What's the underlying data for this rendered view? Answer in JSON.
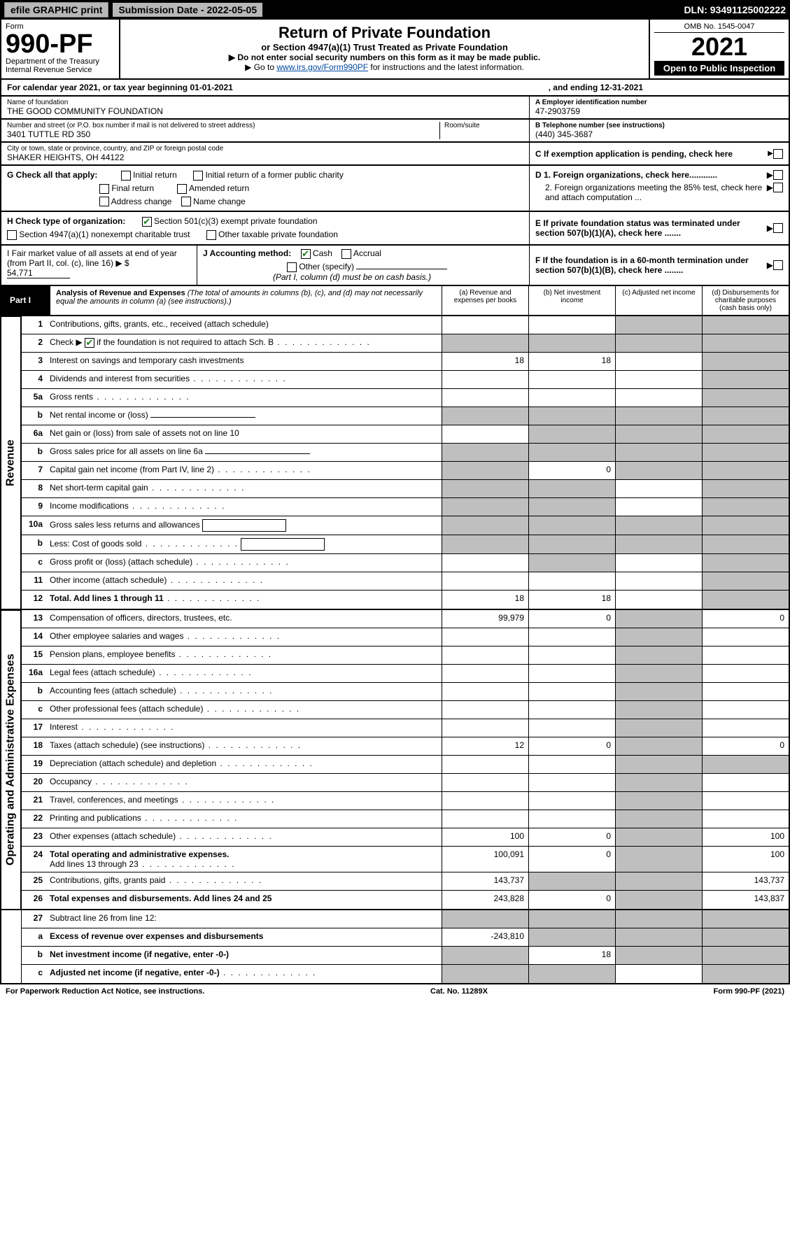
{
  "topbar": {
    "efile": "efile GRAPHIC print",
    "sub_label": "Submission Date - 2022-05-05",
    "dln": "DLN: 93491125002222"
  },
  "header": {
    "form_label": "Form",
    "form_no": "990-PF",
    "dept": "Department of the Treasury",
    "irs": "Internal Revenue Service",
    "title": "Return of Private Foundation",
    "subtitle": "or Section 4947(a)(1) Trust Treated as Private Foundation",
    "note1": "▶ Do not enter social security numbers on this form as it may be made public.",
    "note2_prefix": "▶ Go to ",
    "note2_link": "www.irs.gov/Form990PF",
    "note2_suffix": " for instructions and the latest information.",
    "omb": "OMB No. 1545-0047",
    "year": "2021",
    "open": "Open to Public Inspection"
  },
  "calyear": {
    "text_l": "For calendar year 2021, or tax year beginning 01-01-2021",
    "text_r": ", and ending 12-31-2021"
  },
  "name": {
    "lbl": "Name of foundation",
    "val": "THE GOOD COMMUNITY FOUNDATION",
    "ein_lbl": "A Employer identification number",
    "ein": "47-2903759",
    "addr_lbl": "Number and street (or P.O. box number if mail is not delivered to street address)",
    "addr": "3401 TUTTLE RD 350",
    "room_lbl": "Room/suite",
    "tel_lbl": "B Telephone number (see instructions)",
    "tel": "(440) 345-3687",
    "city_lbl": "City or town, state or province, country, and ZIP or foreign postal code",
    "city": "SHAKER HEIGHTS, OH  44122",
    "c_lbl": "C If exemption application is pending, check here"
  },
  "g": {
    "lbl": "G Check all that apply:",
    "o1": "Initial return",
    "o2": "Initial return of a former public charity",
    "o3": "Final return",
    "o4": "Amended return",
    "o5": "Address change",
    "o6": "Name change"
  },
  "d": {
    "d1": "D 1. Foreign organizations, check here............",
    "d2": "2. Foreign organizations meeting the 85% test, check here and attach computation ..."
  },
  "h": {
    "lbl": "H Check type of organization:",
    "o1": "Section 501(c)(3) exempt private foundation",
    "o2": "Section 4947(a)(1) nonexempt charitable trust",
    "o3": "Other taxable private foundation"
  },
  "e": {
    "lbl": "E  If private foundation status was terminated under section 507(b)(1)(A), check here ......."
  },
  "i": {
    "lbl": "I Fair market value of all assets at end of year (from Part II, col. (c), line 16) ▶ $",
    "val": "54,771"
  },
  "j": {
    "lbl": "J Accounting method:",
    "cash": "Cash",
    "accr": "Accrual",
    "other": "Other (specify)",
    "note": "(Part I, column (d) must be on cash basis.)"
  },
  "f": {
    "lbl": "F  If the foundation is in a 60-month termination under section 507(b)(1)(B), check here ........"
  },
  "part1": {
    "label": "Part I",
    "title": "Analysis of Revenue and Expenses",
    "note": " (The total of amounts in columns (b), (c), and (d) may not necessarily equal the amounts in column (a) (see instructions).)",
    "col_a": "(a)   Revenue and expenses per books",
    "col_b": "(b)   Net investment income",
    "col_c": "(c)   Adjusted net income",
    "col_d": "(d)   Disbursements for charitable purposes (cash basis only)"
  },
  "sides": {
    "rev": "Revenue",
    "op": "Operating and Administrative Expenses"
  },
  "rows": {
    "r1": {
      "n": "1",
      "d": "Contributions, gifts, grants, etc., received (attach schedule)"
    },
    "r2": {
      "n": "2",
      "d": "Check ▶",
      "d2": " if the foundation is not required to attach Sch. B"
    },
    "r3": {
      "n": "3",
      "d": "Interest on savings and temporary cash investments",
      "a": "18",
      "b": "18"
    },
    "r4": {
      "n": "4",
      "d": "Dividends and interest from securities"
    },
    "r5a": {
      "n": "5a",
      "d": "Gross rents"
    },
    "r5b": {
      "n": "b",
      "d": "Net rental income or (loss)"
    },
    "r6a": {
      "n": "6a",
      "d": "Net gain or (loss) from sale of assets not on line 10"
    },
    "r6b": {
      "n": "b",
      "d": "Gross sales price for all assets on line 6a"
    },
    "r7": {
      "n": "7",
      "d": "Capital gain net income (from Part IV, line 2)",
      "b": "0"
    },
    "r8": {
      "n": "8",
      "d": "Net short-term capital gain"
    },
    "r9": {
      "n": "9",
      "d": "Income modifications"
    },
    "r10a": {
      "n": "10a",
      "d": "Gross sales less returns and allowances"
    },
    "r10b": {
      "n": "b",
      "d": "Less: Cost of goods sold"
    },
    "r10c": {
      "n": "c",
      "d": "Gross profit or (loss) (attach schedule)"
    },
    "r11": {
      "n": "11",
      "d": "Other income (attach schedule)"
    },
    "r12": {
      "n": "12",
      "d": "Total. Add lines 1 through 11",
      "a": "18",
      "b": "18"
    },
    "r13": {
      "n": "13",
      "d": "Compensation of officers, directors, trustees, etc.",
      "a": "99,979",
      "b": "0",
      "d4": "0"
    },
    "r14": {
      "n": "14",
      "d": "Other employee salaries and wages"
    },
    "r15": {
      "n": "15",
      "d": "Pension plans, employee benefits"
    },
    "r16a": {
      "n": "16a",
      "d": "Legal fees (attach schedule)"
    },
    "r16b": {
      "n": "b",
      "d": "Accounting fees (attach schedule)"
    },
    "r16c": {
      "n": "c",
      "d": "Other professional fees (attach schedule)"
    },
    "r17": {
      "n": "17",
      "d": "Interest"
    },
    "r18": {
      "n": "18",
      "d": "Taxes (attach schedule) (see instructions)",
      "a": "12",
      "b": "0",
      "d4": "0"
    },
    "r19": {
      "n": "19",
      "d": "Depreciation (attach schedule) and depletion"
    },
    "r20": {
      "n": "20",
      "d": "Occupancy"
    },
    "r21": {
      "n": "21",
      "d": "Travel, conferences, and meetings"
    },
    "r22": {
      "n": "22",
      "d": "Printing and publications"
    },
    "r23": {
      "n": "23",
      "d": "Other expenses (attach schedule)",
      "a": "100",
      "b": "0",
      "d4": "100"
    },
    "r24": {
      "n": "24",
      "d": "Total operating and administrative expenses.",
      "d2": "Add lines 13 through 23",
      "a": "100,091",
      "b": "0",
      "d4": "100"
    },
    "r25": {
      "n": "25",
      "d": "Contributions, gifts, grants paid",
      "a": "143,737",
      "d4": "143,737"
    },
    "r26": {
      "n": "26",
      "d": "Total expenses and disbursements. Add lines 24 and 25",
      "a": "243,828",
      "b": "0",
      "d4": "143,837"
    },
    "r27": {
      "n": "27",
      "d": "Subtract line 26 from line 12:"
    },
    "r27a": {
      "n": "a",
      "d": "Excess of revenue over expenses and disbursements",
      "a": "-243,810"
    },
    "r27b": {
      "n": "b",
      "d": "Net investment income (if negative, enter -0-)",
      "b": "18"
    },
    "r27c": {
      "n": "c",
      "d": "Adjusted net income (if negative, enter -0-)"
    }
  },
  "footer": {
    "l": "For Paperwork Reduction Act Notice, see instructions.",
    "m": "Cat. No. 11289X",
    "r": "Form 990-PF (2021)"
  },
  "colors": {
    "black": "#000000",
    "grey": "#bfbfbf",
    "link": "#0048a0",
    "check": "#1a7f1a"
  }
}
